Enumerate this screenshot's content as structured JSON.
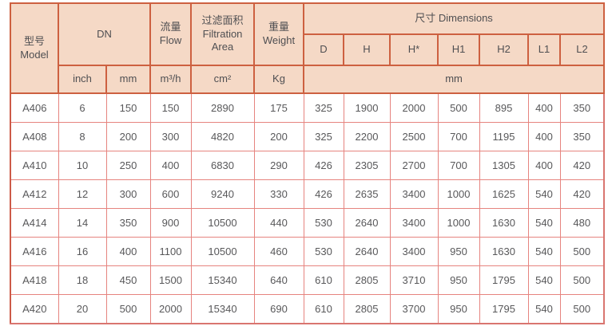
{
  "table": {
    "columns": {
      "model": {
        "zh": "型号",
        "en": "Model"
      },
      "dn": "DN",
      "flow": {
        "zh": "流量",
        "en": "Flow"
      },
      "filtration_area": {
        "zh": "过滤面积",
        "en": "Filtration Area"
      },
      "weight": {
        "zh": "重量",
        "en": "Weight"
      },
      "dimensions": {
        "zh": "尺寸",
        "en": "Dimensions"
      },
      "dimension_labels": [
        "D",
        "H",
        "H*",
        "H1",
        "H2",
        "L1",
        "L2"
      ]
    },
    "units": {
      "inch": "inch",
      "mm": "mm",
      "flow": "m³/h",
      "area": "cm²",
      "weight": "Kg",
      "dimensions": "mm"
    },
    "rows": [
      {
        "model": "A406",
        "values": [
          "6",
          "150",
          "150",
          "2890",
          "175",
          "325",
          "1900",
          "2000",
          "500",
          "895",
          "400",
          "350"
        ]
      },
      {
        "model": "A408",
        "values": [
          "8",
          "200",
          "300",
          "4820",
          "200",
          "325",
          "2200",
          "2500",
          "700",
          "1195",
          "400",
          "350"
        ]
      },
      {
        "model": "A410",
        "values": [
          "10",
          "250",
          "400",
          "6830",
          "290",
          "426",
          "2305",
          "2700",
          "700",
          "1305",
          "400",
          "420"
        ]
      },
      {
        "model": "A412",
        "values": [
          "12",
          "300",
          "600",
          "9240",
          "330",
          "426",
          "2635",
          "3400",
          "1000",
          "1625",
          "540",
          "420"
        ]
      },
      {
        "model": "A414",
        "values": [
          "14",
          "350",
          "900",
          "10500",
          "440",
          "530",
          "2640",
          "3400",
          "1000",
          "1630",
          "540",
          "480"
        ]
      },
      {
        "model": "A416",
        "values": [
          "16",
          "400",
          "1100",
          "10500",
          "460",
          "530",
          "2640",
          "3400",
          "950",
          "1630",
          "540",
          "500"
        ]
      },
      {
        "model": "A418",
        "values": [
          "18",
          "450",
          "1500",
          "15340",
          "640",
          "610",
          "2805",
          "3710",
          "950",
          "1795",
          "540",
          "500"
        ]
      },
      {
        "model": "A420",
        "values": [
          "20",
          "500",
          "2000",
          "15340",
          "690",
          "610",
          "2805",
          "3700",
          "950",
          "1795",
          "540",
          "500"
        ]
      }
    ]
  },
  "colors": {
    "header_bg": "#f5d9c6",
    "header_border": "#cd6040",
    "body_border": "#e6847f",
    "text": "#58585a"
  }
}
